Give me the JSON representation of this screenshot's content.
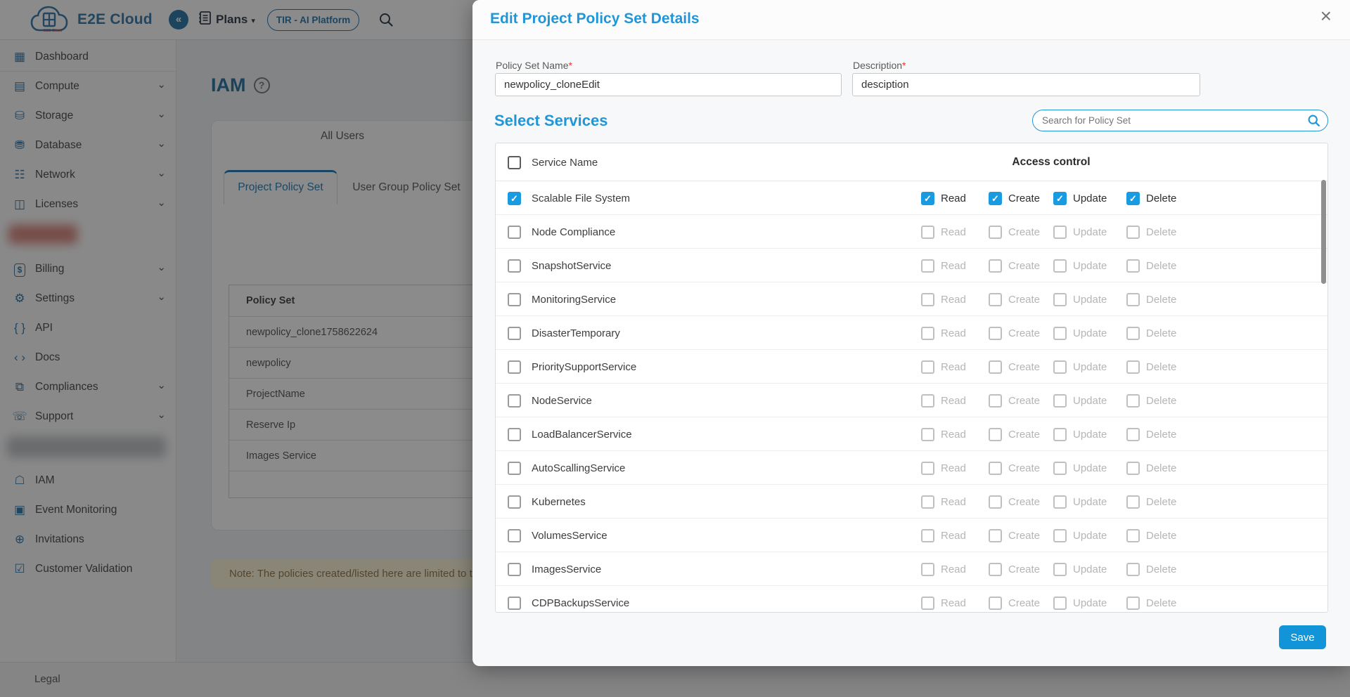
{
  "colors": {
    "accent_blue": "#2196d6",
    "brand_blue": "#2470a5",
    "checkbox_checked_blue": "#189be0",
    "save_button_blue": "#1295d8",
    "active_tab_blue": "#1472ae",
    "note_bg": "#fbf4d8",
    "note_text": "#8a6d3b"
  },
  "header": {
    "brand": "E2E Cloud",
    "collapse_glyph": "«",
    "plans_label": "Plans",
    "plans_caret": "▾",
    "tir_button_label": "TIR - AI Platform"
  },
  "sidebar": {
    "items": [
      {
        "label": "Dashboard",
        "icon": "dashboard-icon",
        "glyph": "▦",
        "chevron": false,
        "divider": true
      },
      {
        "label": "Compute",
        "icon": "compute-icon",
        "glyph": "▤",
        "chevron": true
      },
      {
        "label": "Storage",
        "icon": "storage-icon",
        "glyph": "⛁",
        "chevron": true
      },
      {
        "label": "Database",
        "icon": "database-icon",
        "glyph": "⛃",
        "chevron": true
      },
      {
        "label": "Network",
        "icon": "network-icon",
        "glyph": "☷",
        "chevron": true
      },
      {
        "label": "Licenses",
        "icon": "licenses-icon",
        "glyph": "◫",
        "chevron": true
      },
      {
        "redacted": "red"
      },
      {
        "label": "Billing",
        "icon": "billing-icon",
        "glyph": "$",
        "boxed": true,
        "chevron": true
      },
      {
        "label": "Settings",
        "icon": "settings-gear-icon",
        "glyph": "⚙",
        "chevron": true
      },
      {
        "label": "API",
        "icon": "api-braces-icon",
        "glyph": "{ }",
        "chevron": false
      },
      {
        "label": "Docs",
        "icon": "docs-code-icon",
        "glyph": "‹ ›",
        "chevron": false
      },
      {
        "label": "Compliances",
        "icon": "compliances-document-icon",
        "glyph": "⧉",
        "chevron": true
      },
      {
        "label": "Support",
        "icon": "support-chat-icon",
        "glyph": "☏",
        "chevron": true
      },
      {
        "redacted": "gray"
      },
      {
        "label": "IAM",
        "icon": "iam-shield-icon",
        "glyph": "☖",
        "chevron": false
      },
      {
        "label": "Event Monitoring",
        "icon": "event-monitoring-icon",
        "glyph": "▣",
        "chevron": false
      },
      {
        "label": "Invitations",
        "icon": "invitations-person-add-icon",
        "glyph": "⊕",
        "chevron": false
      },
      {
        "label": "Customer Validation",
        "icon": "customer-validation-shield-check-icon",
        "glyph": "☑",
        "chevron": false
      }
    ],
    "chevron_glyph": "⌄"
  },
  "page": {
    "title": "IAM",
    "help_glyph": "?",
    "all_users_tab": "All Users",
    "policy_tabs": [
      {
        "label": "Project Policy Set",
        "active": true
      },
      {
        "label": "User Group Policy Set",
        "active": false
      }
    ],
    "policy_table": {
      "header": "Policy Set",
      "rows": [
        "newpolicy_clone1758622624",
        "newpolicy",
        "ProjectName",
        "Reserve Ip",
        "Images Service"
      ]
    },
    "note": "Note: The policies created/listed here are limited to th",
    "footer_link": "Legal"
  },
  "modal": {
    "title": "Edit Project Policy Set Details",
    "close_glyph": "×",
    "fields": [
      {
        "label": "Policy Set Name",
        "required": "*",
        "value": "newpolicy_cloneEdit"
      },
      {
        "label": "Description",
        "required": "*",
        "value": "desciption"
      }
    ],
    "section_title": "Select Services",
    "search_placeholder": "Search for Policy Set",
    "table": {
      "name_header": "Service Name",
      "access_header": "Access control",
      "permissions": [
        "Read",
        "Create",
        "Update",
        "Delete"
      ],
      "check_glyph": "✓",
      "services": [
        {
          "name": "Scalable File System",
          "checked": true,
          "permissions_checked": [
            true,
            true,
            true,
            true
          ]
        },
        {
          "name": "Node Compliance",
          "checked": false
        },
        {
          "name": "SnapshotService",
          "checked": false
        },
        {
          "name": "MonitoringService",
          "checked": false
        },
        {
          "name": "DisasterTemporary",
          "checked": false
        },
        {
          "name": "PrioritySupportService",
          "checked": false
        },
        {
          "name": "NodeService",
          "checked": false
        },
        {
          "name": "LoadBalancerService",
          "checked": false
        },
        {
          "name": "AutoScallingService",
          "checked": false
        },
        {
          "name": "Kubernetes",
          "checked": false
        },
        {
          "name": "VolumesService",
          "checked": false
        },
        {
          "name": "ImagesService",
          "checked": false
        },
        {
          "name": "CDPBackupsService",
          "checked": false
        }
      ]
    },
    "save_label": "Save"
  }
}
